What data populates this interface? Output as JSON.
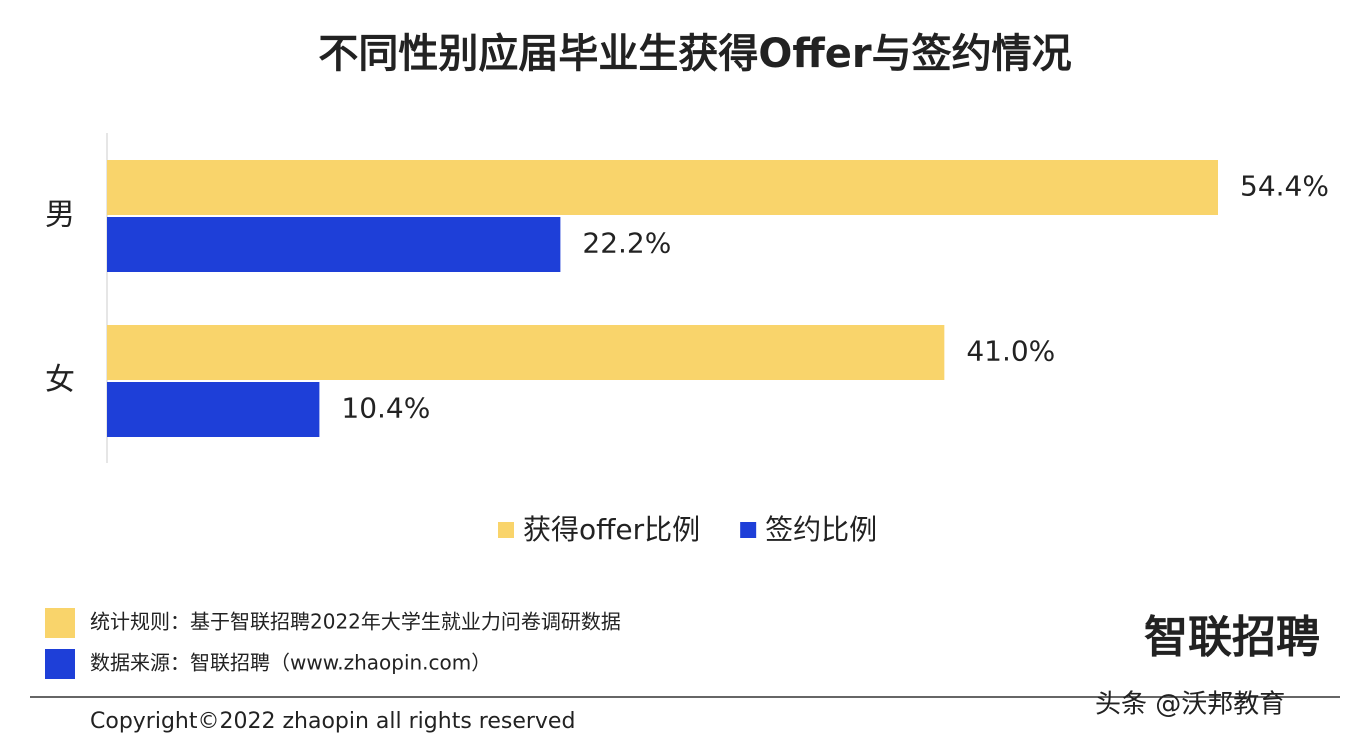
{
  "chart_data": {
    "type": "bar",
    "orientation": "horizontal",
    "title": "不同性别应届毕业生获得Offer与签约情况",
    "categories": [
      "男",
      "女"
    ],
    "series": [
      {
        "name": "获得offer比例",
        "color": "#f9d46b",
        "values": [
          54.4,
          41.0
        ],
        "value_labels": [
          "54.4%",
          "41.0%"
        ]
      },
      {
        "name": "签约比例",
        "color": "#1e3fd8",
        "values": [
          22.2,
          10.4
        ],
        "value_labels": [
          "22.2%",
          "10.4%"
        ]
      }
    ],
    "legend": "bottom",
    "notes": [
      {
        "text": "统计规则：基于智联招聘2022年大学生就业力问卷调研数据",
        "color": "#f9d46b"
      },
      {
        "text": "数据来源：智联招聘（www.zhaopin.com）",
        "color": "#1e3fd8"
      }
    ],
    "logo": "智联招聘",
    "copyright": "Copyright©2022 zhaopin all rights reserved",
    "watermark": "头条 @沃邦教育"
  }
}
